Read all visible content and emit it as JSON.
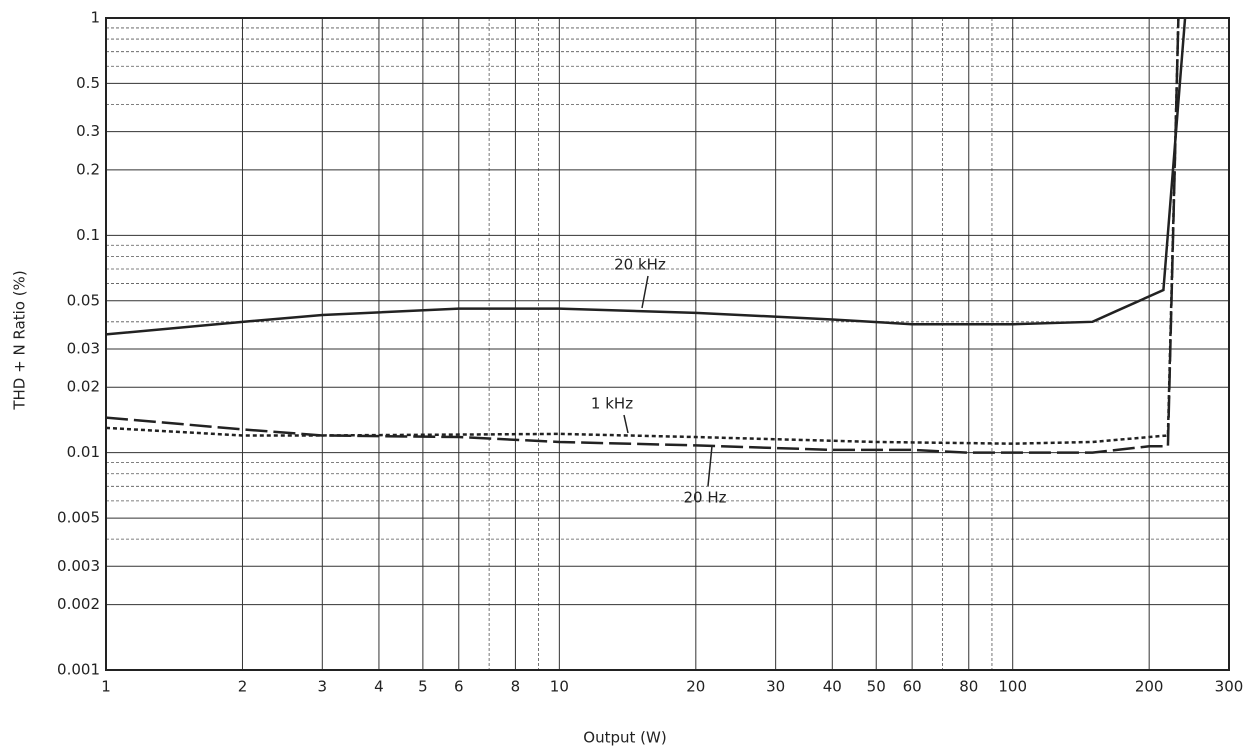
{
  "chart_data": {
    "type": "line",
    "xlabel": "Output (W)",
    "ylabel": "THD + N Ratio (%)",
    "xscale": "log",
    "yscale": "log",
    "xlim": [
      1,
      300
    ],
    "ylim": [
      0.001,
      1
    ],
    "xticks": [
      1,
      2,
      3,
      4,
      5,
      6,
      8,
      10,
      20,
      30,
      40,
      50,
      60,
      80,
      100,
      200,
      300
    ],
    "yticks": [
      0.001,
      0.002,
      0.003,
      0.005,
      0.01,
      0.02,
      0.03,
      0.05,
      0.1,
      0.2,
      0.3,
      0.5,
      1
    ],
    "x_minor_grid": [
      7,
      9,
      70,
      90
    ],
    "y_minor_grid": [
      0.004,
      0.006,
      0.007,
      0.008,
      0.009,
      0.04,
      0.06,
      0.07,
      0.08,
      0.09,
      0.4,
      0.6,
      0.7,
      0.8,
      0.9
    ],
    "grid": true,
    "series": [
      {
        "name": "20 kHz",
        "color": "#222222",
        "dash": "solid",
        "x": [
          1,
          2,
          3,
          6,
          10,
          20,
          40,
          60,
          100,
          150,
          170,
          215,
          240
        ],
        "values": [
          0.035,
          0.04,
          0.043,
          0.046,
          0.046,
          0.044,
          0.041,
          0.039,
          0.039,
          0.04,
          0.045,
          0.056,
          1
        ]
      },
      {
        "name": "1 kHz",
        "color": "#222222",
        "dash": "dotted",
        "x": [
          1,
          2,
          3,
          10,
          20,
          50,
          100,
          150,
          200,
          220,
          232
        ],
        "values": [
          0.013,
          0.012,
          0.012,
          0.0122,
          0.0118,
          0.0112,
          0.011,
          0.0112,
          0.0118,
          0.012,
          1
        ]
      },
      {
        "name": "20 Hz",
        "color": "#222222",
        "dash": "dashed",
        "x": [
          1,
          2,
          3,
          6,
          10,
          20,
          40,
          60,
          80,
          150,
          200,
          220,
          232
        ],
        "values": [
          0.0145,
          0.0128,
          0.012,
          0.0118,
          0.0112,
          0.0108,
          0.0103,
          0.0103,
          0.01,
          0.01,
          0.0107,
          0.0107,
          1
        ]
      }
    ]
  }
}
